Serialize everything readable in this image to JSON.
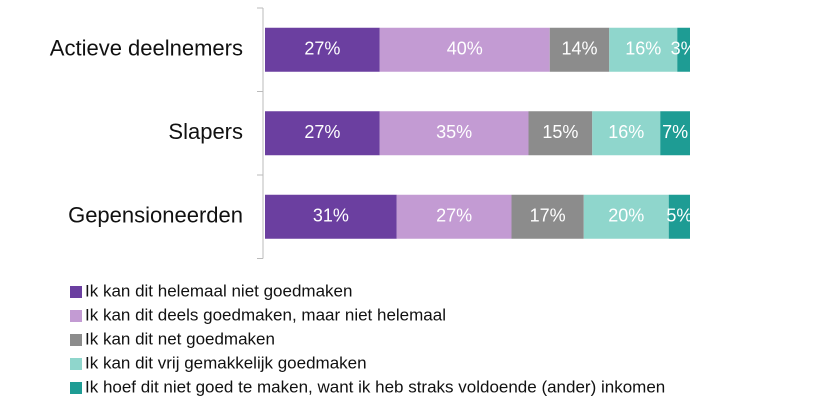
{
  "chart_data": {
    "type": "stacked-bar-horizontal",
    "categories": [
      "Actieve deelnemers",
      "Slapers",
      "Gepensioneerden"
    ],
    "series": [
      {
        "name": "Ik kan dit helemaal niet goedmaken",
        "color": "#6b3fa0",
        "values": [
          27,
          27,
          31
        ],
        "value_labels": [
          "27%",
          "27%",
          "31%"
        ]
      },
      {
        "name": "Ik kan dit deels goedmaken, maar niet helemaal",
        "color": "#c39bd3",
        "values": [
          40,
          35,
          27
        ],
        "value_labels": [
          "40%",
          "35%",
          "27%"
        ]
      },
      {
        "name": "Ik kan dit net goedmaken",
        "color": "#8c8c8c",
        "values": [
          14,
          15,
          17
        ],
        "value_labels": [
          "14%",
          "15%",
          "17%"
        ]
      },
      {
        "name": "Ik kan dit vrij gemakkelijk goedmaken",
        "color": "#8fd6cc",
        "values": [
          16,
          16,
          20
        ],
        "value_labels": [
          "16%",
          "16%",
          "20%"
        ]
      },
      {
        "name": "Ik hoef dit niet goed te maken, want ik heb straks voldoende (ander) inkomen",
        "color": "#1e9c94",
        "values": [
          3,
          7,
          5
        ],
        "value_labels": [
          "3%",
          "7%",
          "5%"
        ]
      }
    ]
  }
}
